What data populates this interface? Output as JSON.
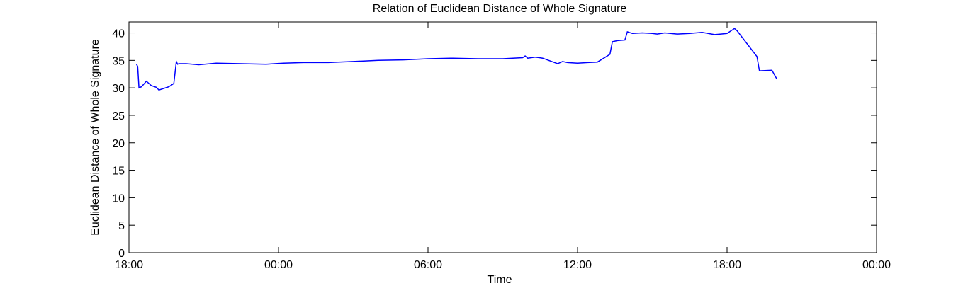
{
  "chart_data": {
    "type": "line",
    "title": "Relation of Euclidean Distance of Whole Signature",
    "xlabel": "Time",
    "ylabel": "Euclidean Distance of Whole Signature",
    "x_unit": "hours",
    "xlim": [
      18,
      48
    ],
    "ylim": [
      0,
      42
    ],
    "x_ticks": [
      {
        "value": 18,
        "label": "18:00"
      },
      {
        "value": 24,
        "label": "00:00"
      },
      {
        "value": 30,
        "label": "06:00"
      },
      {
        "value": 36,
        "label": "12:00"
      },
      {
        "value": 42,
        "label": "18:00"
      },
      {
        "value": 48,
        "label": "00:00"
      }
    ],
    "y_ticks": [
      {
        "value": 0,
        "label": "0"
      },
      {
        "value": 5,
        "label": "5"
      },
      {
        "value": 10,
        "label": "10"
      },
      {
        "value": 15,
        "label": "15"
      },
      {
        "value": 20,
        "label": "20"
      },
      {
        "value": 25,
        "label": "25"
      },
      {
        "value": 30,
        "label": "30"
      },
      {
        "value": 35,
        "label": "35"
      },
      {
        "value": 40,
        "label": "40"
      }
    ],
    "grid": false,
    "line_color": "#0000ff",
    "series": [
      {
        "name": "",
        "x": [
          18.3,
          18.35,
          18.4,
          18.5,
          18.7,
          18.9,
          19.1,
          19.2,
          19.4,
          19.6,
          19.8,
          19.9,
          19.95,
          20.0,
          20.3,
          20.8,
          21.5,
          22.5,
          23.5,
          24.2,
          25.0,
          26.0,
          27.0,
          28.0,
          29.0,
          30.0,
          31.0,
          32.0,
          33.0,
          33.8,
          33.9,
          34.0,
          34.3,
          34.6,
          35.2,
          35.4,
          35.6,
          36.0,
          36.4,
          36.8,
          37.3,
          37.4,
          37.6,
          37.9,
          38.0,
          38.2,
          38.6,
          39.0,
          39.2,
          39.5,
          40.0,
          40.5,
          41.0,
          41.5,
          42.0,
          42.3,
          42.4,
          43.2,
          43.3,
          43.8,
          44.0
        ],
        "y": [
          34.3,
          33.9,
          30.0,
          30.2,
          31.2,
          30.4,
          30.1,
          29.6,
          29.9,
          30.2,
          30.8,
          34.8,
          34.3,
          34.4,
          34.4,
          34.2,
          34.5,
          34.4,
          34.3,
          34.5,
          34.6,
          34.6,
          34.8,
          35.0,
          35.1,
          35.3,
          35.4,
          35.3,
          35.3,
          35.5,
          35.8,
          35.4,
          35.6,
          35.4,
          34.4,
          34.8,
          34.6,
          34.5,
          34.6,
          34.7,
          36.1,
          38.4,
          38.6,
          38.7,
          40.2,
          39.9,
          40.0,
          39.9,
          39.8,
          40.0,
          39.8,
          39.9,
          40.1,
          39.7,
          39.9,
          40.8,
          40.4,
          35.7,
          33.1,
          33.2,
          31.6
        ]
      }
    ]
  }
}
